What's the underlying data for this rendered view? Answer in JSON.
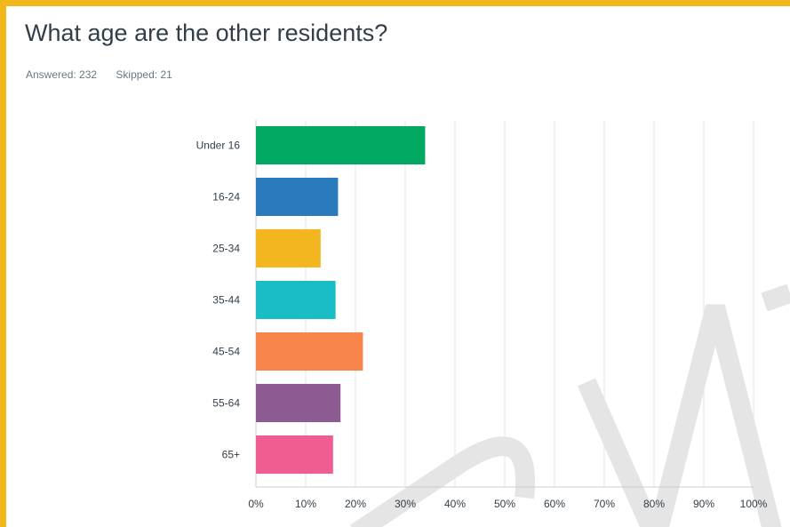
{
  "question": {
    "title": "What age are the other residents?",
    "answered_label": "Answered: 232",
    "skipped_label": "Skipped: 21"
  },
  "colors": {
    "frame": "#f2b71d",
    "grid": "#e6e6e6",
    "axis": "#cccccc",
    "watermark": "#e5e5e5"
  },
  "chart_data": {
    "type": "bar",
    "orientation": "horizontal",
    "categories": [
      "Under 16",
      "16-24",
      "25-34",
      "35-44",
      "45-54",
      "55-64",
      "65+"
    ],
    "values": [
      34,
      16.5,
      13,
      16,
      21.5,
      17,
      15.5
    ],
    "colors": [
      "#00a862",
      "#2a7bbd",
      "#f3b61f",
      "#19bdc4",
      "#f7844b",
      "#8b5b91",
      "#ef5d92"
    ],
    "xlim": [
      0,
      100
    ],
    "xticks": [
      "0%",
      "10%",
      "20%",
      "30%",
      "40%",
      "50%",
      "60%",
      "70%",
      "80%",
      "90%",
      "100%"
    ],
    "grid": true
  }
}
